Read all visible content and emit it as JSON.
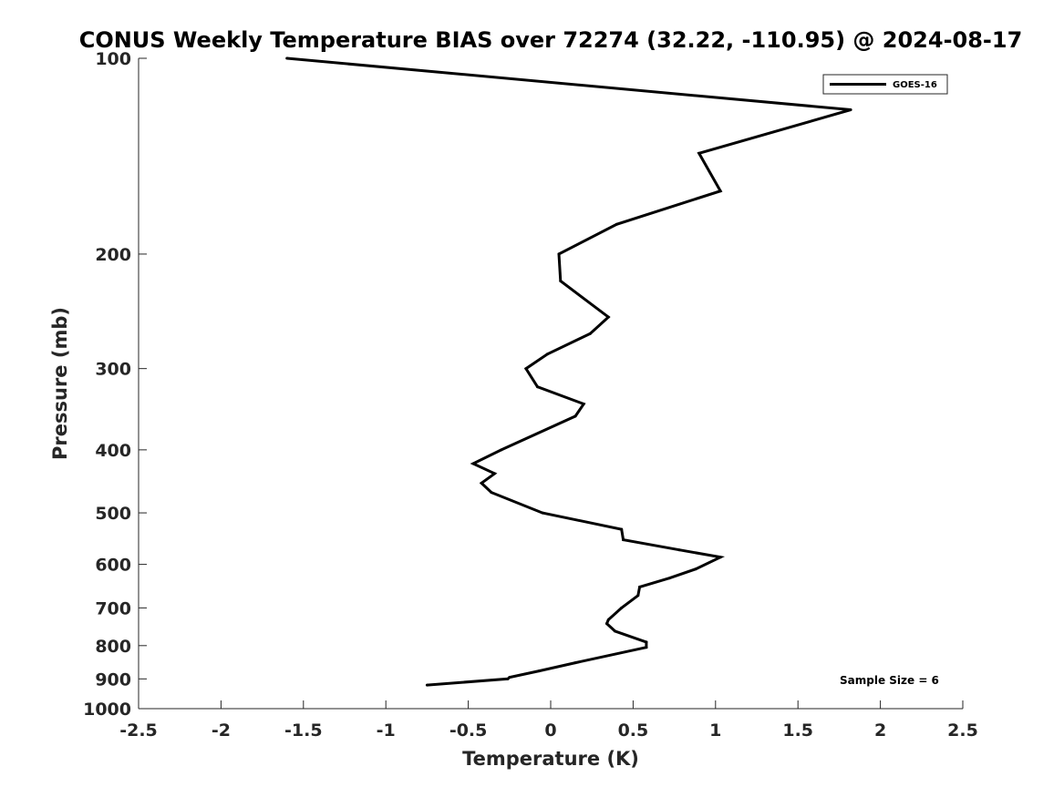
{
  "chart_data": {
    "type": "line",
    "title": "CONUS Weekly Temperature BIAS over 72274 (32.22, -110.95) @ 2024-08-17",
    "xlabel": "Temperature (K)",
    "ylabel": "Pressure (mb)",
    "xlim": [
      -2.5,
      2.5
    ],
    "ylim": [
      100,
      1000
    ],
    "y_scale": "log",
    "y_reversed": true,
    "grid": false,
    "legend_position": "top-right",
    "x_ticks": [
      "-2.5",
      "-2",
      "-1.5",
      "-1",
      "-0.5",
      "0",
      "0.5",
      "1",
      "1.5",
      "2",
      "2.5"
    ],
    "y_ticks": [
      "100",
      "200",
      "300",
      "400",
      "500",
      "600",
      "700",
      "800",
      "900",
      "1000"
    ],
    "series": [
      {
        "name": "GOES-16",
        "color": "#000000",
        "points": [
          {
            "x": -1.6,
            "y": 100
          },
          {
            "x": 1.82,
            "y": 120
          },
          {
            "x": 0.9,
            "y": 140
          },
          {
            "x": 1.03,
            "y": 160
          },
          {
            "x": 0.4,
            "y": 180
          },
          {
            "x": 0.05,
            "y": 200
          },
          {
            "x": 0.06,
            "y": 220
          },
          {
            "x": 0.35,
            "y": 250
          },
          {
            "x": 0.24,
            "y": 265
          },
          {
            "x": -0.02,
            "y": 285
          },
          {
            "x": -0.15,
            "y": 300
          },
          {
            "x": -0.08,
            "y": 320
          },
          {
            "x": 0.2,
            "y": 340
          },
          {
            "x": 0.15,
            "y": 355
          },
          {
            "x": -0.3,
            "y": 400
          },
          {
            "x": -0.47,
            "y": 420
          },
          {
            "x": -0.34,
            "y": 435
          },
          {
            "x": -0.42,
            "y": 450
          },
          {
            "x": -0.36,
            "y": 465
          },
          {
            "x": -0.05,
            "y": 500
          },
          {
            "x": 0.43,
            "y": 530
          },
          {
            "x": 0.44,
            "y": 550
          },
          {
            "x": 0.78,
            "y": 570
          },
          {
            "x": 1.03,
            "y": 585
          },
          {
            "x": 0.88,
            "y": 610
          },
          {
            "x": 0.72,
            "y": 630
          },
          {
            "x": 0.54,
            "y": 650
          },
          {
            "x": 0.53,
            "y": 670
          },
          {
            "x": 0.43,
            "y": 700
          },
          {
            "x": 0.35,
            "y": 730
          },
          {
            "x": 0.34,
            "y": 740
          },
          {
            "x": 0.39,
            "y": 760
          },
          {
            "x": 0.58,
            "y": 790
          },
          {
            "x": 0.58,
            "y": 805
          },
          {
            "x": 0.15,
            "y": 850
          },
          {
            "x": -0.07,
            "y": 875
          },
          {
            "x": -0.25,
            "y": 895
          },
          {
            "x": -0.26,
            "y": 900
          },
          {
            "x": -0.75,
            "y": 920
          }
        ]
      }
    ],
    "annotation": "Sample Size = 6"
  }
}
